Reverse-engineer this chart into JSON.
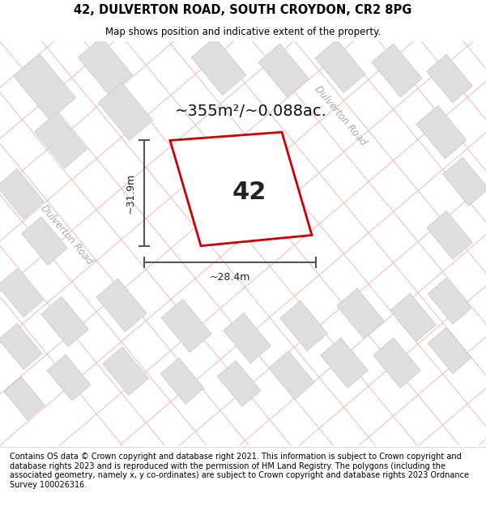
{
  "title_line1": "42, DULVERTON ROAD, SOUTH CROYDON, CR2 8PG",
  "title_line2": "Map shows position and indicative extent of the property.",
  "area_text": "~355m²/~0.088ac.",
  "property_number": "42",
  "width_label": "~28.4m",
  "height_label": "~31.9m",
  "road_label_left": "Dulverton Road",
  "road_label_top": "Dulverton Road",
  "footer_text": "Contains OS data © Crown copyright and database right 2021. This information is subject to Crown copyright and database rights 2023 and is reproduced with the permission of HM Land Registry. The polygons (including the associated geometry, namely x, y co-ordinates) are subject to Crown copyright and database rights 2023 Ordnance Survey 100026316.",
  "bg_color": "#ffffff",
  "grid_line_color": "#f0b8b8",
  "block_color": "#dedede",
  "block_edge_color": "#c8c8c8",
  "property_color": "#cc0000",
  "title_fontsize": 10.5,
  "subtitle_fontsize": 8.5,
  "footer_fontsize": 7.0,
  "area_fontsize": 14,
  "number_fontsize": 22,
  "dim_label_fontsize": 9,
  "road_fontsize": 8.5
}
